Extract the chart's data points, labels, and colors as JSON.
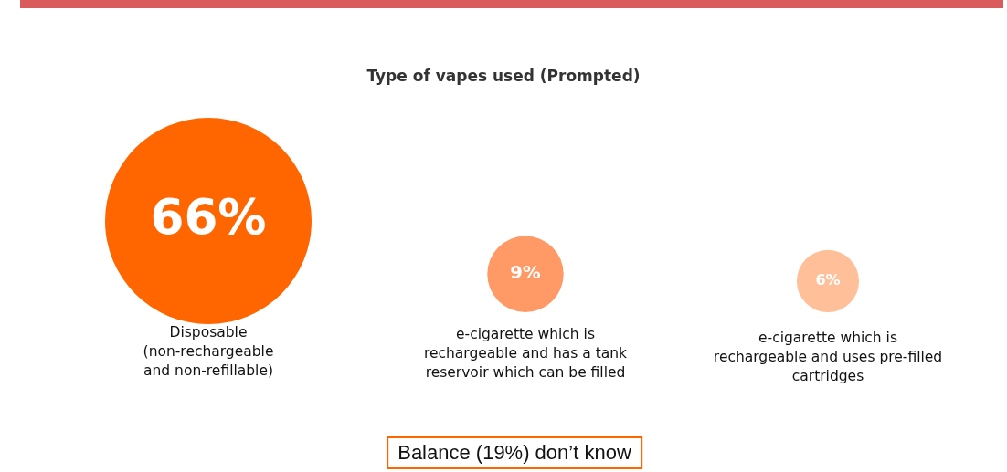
{
  "chart_data": {
    "type": "other",
    "title": "Type of vapes used (Prompted)",
    "categories": [
      "Disposable (non-rechargeable and non-refillable)",
      "e-cigarette which is rechargeable and has a tank reservoir which can be filled",
      "e-cigarette which is rechargeable and uses pre-filled cartridges"
    ],
    "values": [
      66,
      9,
      6
    ],
    "colors": [
      "#ff6600",
      "#ff9966",
      "#ffbf99"
    ],
    "value_labels": [
      "66%",
      "9%",
      "6%"
    ],
    "annotations": [
      "Balance (19%) don’t know"
    ]
  }
}
